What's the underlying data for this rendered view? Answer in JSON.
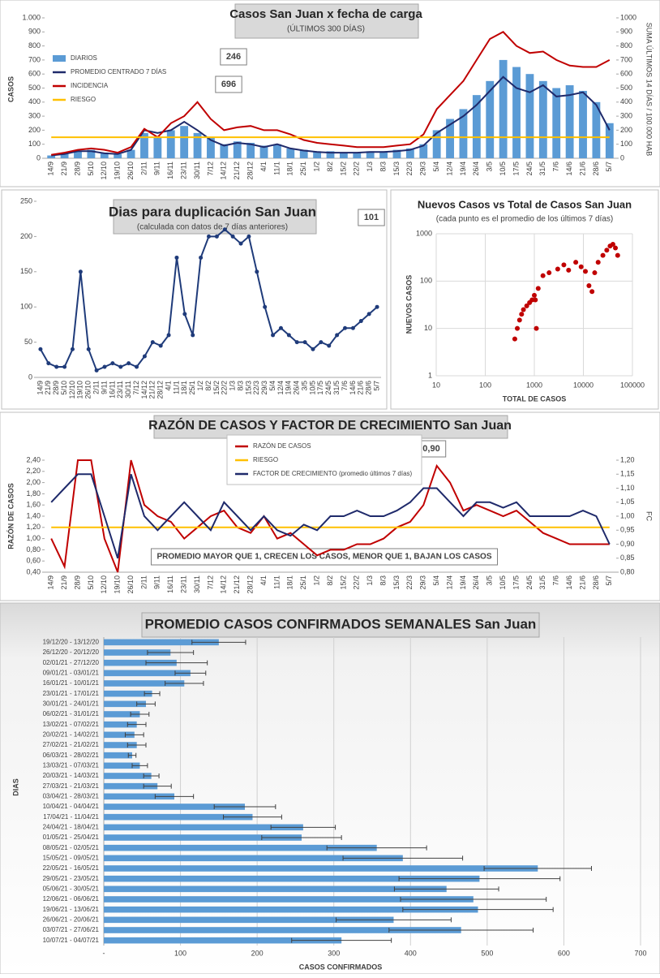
{
  "chart_data": [
    {
      "type": "combo",
      "title": "Casos San Juan x fecha de carga",
      "subtitle": "(ÚLTIMOS 300 DÍAS)",
      "y_label": "CASOS",
      "y2_label": "SUMA  ÚLTIMOS 14 DÍAS / 100.000 HAB",
      "categories": [
        "14/9",
        "21/9",
        "28/9",
        "5/10",
        "12/10",
        "19/10",
        "26/10",
        "2/11",
        "9/11",
        "16/11",
        "23/11",
        "30/11",
        "7/12",
        "14/12",
        "21/12",
        "28/12",
        "4/1",
        "11/1",
        "18/1",
        "25/1",
        "1/2",
        "8/2",
        "15/2",
        "22/2",
        "1/3",
        "8/3",
        "15/3",
        "22/3",
        "29/3",
        "5/4",
        "12/4",
        "19/4",
        "26/4",
        "3/5",
        "10/5",
        "17/5",
        "24/5",
        "31/5",
        "7/6",
        "14/6",
        "21/6",
        "28/6",
        "5/7"
      ],
      "series": [
        {
          "name": "DIARIOS",
          "kind": "bar",
          "color": "#5b9bd5",
          "values": [
            20,
            30,
            50,
            60,
            40,
            30,
            60,
            180,
            150,
            200,
            230,
            180,
            150,
            100,
            120,
            110,
            90,
            100,
            70,
            60,
            50,
            50,
            40,
            40,
            50,
            50,
            60,
            70,
            100,
            200,
            280,
            350,
            450,
            550,
            700,
            650,
            600,
            550,
            500,
            520,
            480,
            400,
            250
          ]
        },
        {
          "name": "PROMEDIO CENTRADO 7 DÍAS",
          "color": "#1f2a6b",
          "values": [
            20,
            30,
            50,
            50,
            35,
            30,
            60,
            200,
            180,
            200,
            260,
            200,
            130,
            90,
            110,
            100,
            80,
            100,
            70,
            55,
            45,
            40,
            40,
            40,
            45,
            45,
            50,
            60,
            90,
            180,
            240,
            300,
            380,
            480,
            580,
            500,
            470,
            520,
            440,
            450,
            470,
            380,
            200
          ]
        },
        {
          "name": "INCIDENCIA",
          "color": "#c00000",
          "axis": "y2",
          "values": [
            25,
            40,
            60,
            70,
            60,
            40,
            80,
            210,
            150,
            250,
            300,
            400,
            280,
            200,
            220,
            230,
            200,
            200,
            170,
            130,
            110,
            100,
            90,
            80,
            80,
            80,
            90,
            100,
            170,
            350,
            450,
            550,
            700,
            850,
            900,
            800,
            750,
            760,
            700,
            660,
            650,
            650,
            700
          ]
        },
        {
          "name": "RIESGO",
          "color": "#ffc000",
          "values": [
            150,
            150,
            150,
            150,
            150,
            150,
            150,
            150,
            150,
            150,
            150,
            150,
            150,
            150,
            150,
            150,
            150,
            150,
            150,
            150,
            150,
            150,
            150,
            150,
            150,
            150,
            150,
            150,
            150,
            150,
            150,
            150,
            150,
            150,
            150,
            150,
            150,
            150,
            150,
            150,
            150,
            150,
            150
          ]
        }
      ],
      "ylim": [
        0,
        1000
      ],
      "yticks": [
        0,
        100,
        200,
        300,
        400,
        500,
        600,
        700,
        800,
        900,
        {
          "value": 1000,
          "label": "1.000"
        }
      ],
      "y2lim": [
        0,
        1000
      ],
      "y2ticks": [
        0,
        100,
        200,
        300,
        400,
        500,
        600,
        700,
        800,
        900,
        1000
      ],
      "legend": "upper left",
      "annotations": [
        "246",
        "696"
      ]
    },
    {
      "type": "line",
      "title": "Dias para duplicación San Juan",
      "subtitle": "(calculada con datos de 7 días anteriores)",
      "categories": [
        "14/9",
        "21/9",
        "28/9",
        "5/10",
        "12/10",
        "19/10",
        "26/10",
        "2/11",
        "9/11",
        "16/11",
        "23/11",
        "30/11",
        "7/12",
        "14/12",
        "21/12",
        "28/12",
        "4/1",
        "11/1",
        "18/1",
        "25/1",
        "1/2",
        "8/2",
        "15/2",
        "22/2",
        "1/3",
        "8/3",
        "15/3",
        "22/3",
        "29/3",
        "5/4",
        "12/4",
        "19/4",
        "26/4",
        "3/5",
        "10/5",
        "17/5",
        "24/5",
        "31/5",
        "7/6",
        "14/6",
        "21/6",
        "28/6",
        "5/7"
      ],
      "series": [
        {
          "color": "#1f3b7a",
          "marker": true,
          "values": [
            40,
            20,
            15,
            15,
            40,
            150,
            40,
            10,
            15,
            20,
            15,
            20,
            15,
            30,
            50,
            45,
            60,
            170,
            90,
            60,
            170,
            200,
            200,
            210,
            200,
            190,
            200,
            150,
            100,
            60,
            70,
            60,
            50,
            50,
            40,
            50,
            45,
            60,
            70,
            70,
            80,
            90,
            100
          ]
        }
      ],
      "ylim": [
        0,
        250
      ],
      "yticks": [
        0,
        50,
        100,
        150,
        200,
        250
      ],
      "annotations": [
        "101"
      ]
    },
    {
      "type": "scatter",
      "title": "Nuevos Casos vs Total de Casos San Juan",
      "subtitle": "(cada punto es el promedio de los últimos 7 días)",
      "x_label": "TOTAL DE CASOS",
      "y_label": "NUEVOS CASOS",
      "log": true,
      "grid": true,
      "color": "#c00000",
      "x": [
        400,
        450,
        500,
        550,
        600,
        700,
        800,
        900,
        1000,
        1050,
        1100,
        1200,
        1500,
        2000,
        3000,
        4000,
        5000,
        7000,
        9000,
        11000,
        13000,
        15000,
        17000,
        20000,
        25000,
        30000,
        35000,
        40000,
        45000,
        50000
      ],
      "y": [
        6,
        10,
        15,
        20,
        25,
        30,
        35,
        40,
        50,
        40,
        10,
        70,
        130,
        150,
        180,
        220,
        170,
        250,
        200,
        160,
        80,
        60,
        150,
        250,
        350,
        450,
        550,
        600,
        500,
        350
      ],
      "xlim": [
        10,
        100000
      ],
      "xticks": [
        10,
        100,
        1000,
        10000,
        100000
      ],
      "ylim": [
        1,
        1000
      ],
      "yticks": [
        1,
        10,
        100,
        1000
      ]
    },
    {
      "type": "combo",
      "title": "RAZÓN DE CASOS Y FACTOR DE CRECIMIENTO San Juan",
      "y_label": "RAZÓN DE CASOS",
      "y2_label": "FC",
      "categories": [
        "14/9",
        "21/9",
        "28/9",
        "5/10",
        "12/10",
        "19/10",
        "26/10",
        "2/11",
        "9/11",
        "16/11",
        "23/11",
        "30/11",
        "7/12",
        "14/12",
        "21/12",
        "28/12",
        "4/1",
        "11/1",
        "18/1",
        "25/1",
        "1/2",
        "8/2",
        "15/2",
        "22/2",
        "1/3",
        "8/3",
        "15/3",
        "22/3",
        "29/3",
        "5/4",
        "12/4",
        "19/4",
        "26/4",
        "3/5",
        "10/5",
        "17/5",
        "24/5",
        "31/5",
        "7/6",
        "14/6",
        "21/6",
        "28/6",
        "5/7"
      ],
      "series": [
        {
          "name": "RAZÓN DE CASOS",
          "color": "#c00000",
          "values": [
            1.0,
            0.5,
            2.4,
            2.4,
            1.0,
            0.4,
            2.4,
            1.6,
            1.4,
            1.3,
            1.0,
            1.2,
            1.4,
            1.5,
            1.2,
            1.1,
            1.4,
            1.0,
            1.1,
            0.9,
            0.7,
            0.8,
            0.8,
            0.9,
            0.9,
            1.0,
            1.2,
            1.3,
            1.6,
            2.3,
            2.0,
            1.5,
            1.6,
            1.5,
            1.4,
            1.5,
            1.3,
            1.1,
            1.0,
            0.9,
            0.9,
            0.9,
            0.9
          ]
        },
        {
          "name": "RIESGO",
          "color": "#ffc000",
          "values": [
            1.2,
            1.2,
            1.2,
            1.2,
            1.2,
            1.2,
            1.2,
            1.2,
            1.2,
            1.2,
            1.2,
            1.2,
            1.2,
            1.2,
            1.2,
            1.2,
            1.2,
            1.2,
            1.2,
            1.2,
            1.2,
            1.2,
            1.2,
            1.2,
            1.2,
            1.2,
            1.2,
            1.2,
            1.2,
            1.2,
            1.2,
            1.2,
            1.2,
            1.2,
            1.2,
            1.2,
            1.2,
            1.2,
            1.2,
            1.2,
            1.2,
            1.2,
            1.2
          ]
        },
        {
          "name": "FACTOR DE CRECIMIENTO (promedio últimos 7 días)",
          "color": "#1f2a6b",
          "axis": "y2",
          "values": [
            1.05,
            1.1,
            1.15,
            1.15,
            1.0,
            0.85,
            1.15,
            1.0,
            0.95,
            1.0,
            1.05,
            1.0,
            0.95,
            1.05,
            1.0,
            0.95,
            1.0,
            0.95,
            0.93,
            0.97,
            0.95,
            1.0,
            1.0,
            1.02,
            1.0,
            1.0,
            1.02,
            1.05,
            1.1,
            1.1,
            1.05,
            1.0,
            1.05,
            1.05,
            1.03,
            1.05,
            1.0,
            1.0,
            1.0,
            1.0,
            1.02,
            1.0,
            0.9
          ]
        }
      ],
      "ylim": [
        0.4,
        2.4
      ],
      "yticks": [
        {
          "value": 0.4,
          "label": "0,40"
        },
        {
          "value": 0.6,
          "label": "0,60"
        },
        {
          "value": 0.8,
          "label": "0,80"
        },
        {
          "value": 1.0,
          "label": "1,00"
        },
        {
          "value": 1.2,
          "label": "1,20"
        },
        {
          "value": 1.4,
          "label": "1,40"
        },
        {
          "value": 1.6,
          "label": "1,60"
        },
        {
          "value": 1.8,
          "label": "1,80"
        },
        {
          "value": 2.0,
          "label": "2,00"
        },
        {
          "value": 2.2,
          "label": "2,20"
        },
        {
          "value": 2.4,
          "label": "2,40"
        }
      ],
      "y2lim": [
        0.8,
        1.2
      ],
      "y2ticks": [
        {
          "value": 0.8,
          "label": "0,80"
        },
        {
          "value": 0.85,
          "label": "0,85"
        },
        {
          "value": 0.9,
          "label": "0,90"
        },
        {
          "value": 0.95,
          "label": "0,95"
        },
        {
          "value": 1.0,
          "label": "1,00"
        },
        {
          "value": 1.05,
          "label": "1,05"
        },
        {
          "value": 1.1,
          "label": "1,10"
        },
        {
          "value": 1.15,
          "label": "1,15"
        },
        {
          "value": 1.2,
          "label": "1,20"
        }
      ],
      "legend": "upper center",
      "annotations": [
        "0,90",
        "PROMEDIO MAYOR QUE 1, CRECEN LOS CASOS, MENOR QUE 1, BAJAN LOS CASOS"
      ]
    },
    {
      "type": "bar",
      "orientation": "horizontal",
      "title": "PROMEDIO CASOS CONFIRMADOS SEMANALES San Juan",
      "x_label": "CASOS CONFIRMADOS",
      "y_label": "DIAS",
      "grid": true,
      "color": "#5b9bd5",
      "error_color": "#404040",
      "categories": [
        "19/12/20 - 13/12/20",
        "26/12/20 - 20/12/20",
        "02/01/21 - 27/12/20",
        "09/01/21 - 03/01/21",
        "16/01/21 - 10/01/21",
        "23/01/21 - 17/01/21",
        "30/01/21 - 24/01/21",
        "06/02/21 - 31/01/21",
        "13/02/21 - 07/02/21",
        "20/02/21 - 14/02/21",
        "27/02/21 - 21/02/21",
        "06/03/21 - 28/02/21",
        "13/03/21 - 07/03/21",
        "20/03/21 - 14/03/21",
        "27/03/21 - 21/03/21",
        "03/04/21 - 28/03/21",
        "10/04/21 - 04/04/21",
        "17/04/21 - 11/04/21",
        "24/04/21 - 18/04/21",
        "01/05/21 - 25/04/21",
        "08/05/21 - 02/05/21",
        "15/05/21 - 09/05/21",
        "22/05/21 - 16/05/21",
        "29/05/21 - 23/05/21",
        "05/06/21 - 30/05/21",
        "12/06/21 - 06/06/21",
        "19/06/21 - 13/06/21",
        "26/06/21 - 20/06/21",
        "03/07/21 - 27/06/21",
        "10/07/21 - 04/07/21"
      ],
      "values": [
        150,
        87,
        95,
        113,
        105,
        63,
        55,
        47,
        43,
        40,
        43,
        37,
        47,
        62,
        70,
        92,
        184,
        194,
        260,
        258,
        356,
        390,
        566,
        490,
        447,
        482,
        488,
        378,
        466,
        310
      ],
      "errors": [
        35,
        30,
        40,
        20,
        25,
        10,
        12,
        12,
        12,
        12,
        12,
        5,
        10,
        10,
        18,
        25,
        40,
        38,
        42,
        52,
        65,
        78,
        70,
        105,
        68,
        95,
        98,
        75,
        94,
        65
      ],
      "xlim": [
        0,
        700
      ],
      "xticks": [
        {
          "value": 0,
          "label": "-"
        },
        100,
        200,
        300,
        400,
        500,
        600,
        700
      ]
    }
  ]
}
